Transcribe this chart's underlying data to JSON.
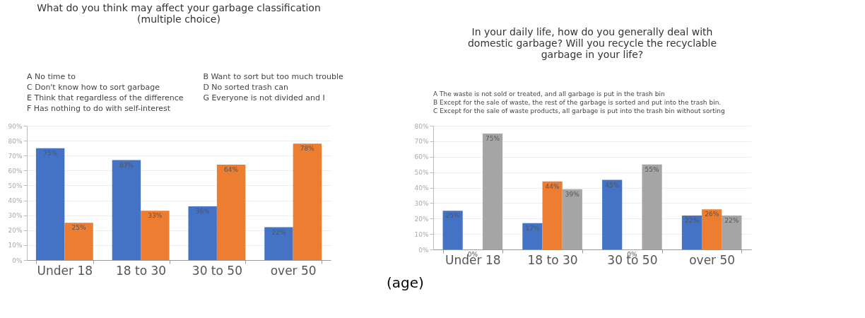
{
  "chart_data": [
    {
      "type": "bar",
      "title": [
        "What do you think may affect your garbage classification",
        "(multiple choice)"
      ],
      "annotations": [
        "A No time to",
        "B Want to sort but too much trouble",
        "C Don't know how to sort garbage",
        "D No sorted trash can",
        "E Think that regardless of the difference",
        "G Everyone is not divided and I",
        "F Has nothing to do with self-interest"
      ],
      "categories": [
        "Under 18",
        "18 to 30",
        "30 to 50",
        "over 50"
      ],
      "series": [
        {
          "color": "#4472c4",
          "values": [
            75,
            67,
            36,
            22
          ],
          "value_labels": [
            "75%",
            "67%",
            "36%",
            "22%"
          ]
        },
        {
          "color": "#ed7d31",
          "values": [
            25,
            33,
            64,
            78
          ],
          "value_labels": [
            "25%",
            "33%",
            "64%",
            "78%"
          ]
        }
      ],
      "ylim": [
        0,
        90
      ],
      "yticks": [
        {
          "value": 0,
          "label": "0%"
        },
        {
          "value": 10,
          "label": "10%"
        },
        {
          "value": 20,
          "label": "20%"
        },
        {
          "value": 30,
          "label": "30%"
        },
        {
          "value": 40,
          "label": "40%"
        },
        {
          "value": 50,
          "label": "50%"
        },
        {
          "value": 60,
          "label": "60%"
        },
        {
          "value": 70,
          "label": "70%"
        },
        {
          "value": 80,
          "label": "80%"
        },
        {
          "value": 90,
          "label": "90%"
        }
      ],
      "grid": "y",
      "legend": false
    },
    {
      "type": "bar",
      "title": [
        "In your daily life, how do you generally deal with",
        "domestic garbage? Will you recycle the recyclable",
        "garbage in your life?"
      ],
      "annotations": [
        "A The waste is not sold or treated, and all garbage is put in the trash bin",
        "B Except for the sale of waste, the rest of the garbage is sorted and put into the trash bin.",
        "C Except for the sale of waste products, all garbage is put into the trash bin without sorting"
      ],
      "xlabel": "(age)",
      "categories": [
        "Under 18",
        "18 to 30",
        "30 to 50",
        "over 50"
      ],
      "series": [
        {
          "color": "#4472c4",
          "values": [
            25,
            17,
            45,
            22
          ],
          "value_labels": [
            "25%",
            "17%",
            "45%",
            "22%"
          ]
        },
        {
          "color": "#ed7d31",
          "values": [
            0,
            44,
            0,
            26
          ],
          "value_labels": [
            "0%",
            "44%",
            "0%",
            "26%"
          ]
        },
        {
          "color": "#a5a5a5",
          "values": [
            75,
            39,
            55,
            22
          ],
          "value_labels": [
            "75%",
            "39%",
            "55%",
            "22%"
          ]
        }
      ],
      "ylim": [
        0,
        80
      ],
      "yticks": [
        {
          "value": 0,
          "label": "0%"
        },
        {
          "value": 10,
          "label": "10%"
        },
        {
          "value": 20,
          "label": "20%"
        },
        {
          "value": 30,
          "label": "30%"
        },
        {
          "value": 40,
          "label": "40%"
        },
        {
          "value": 50,
          "label": "50%"
        },
        {
          "value": 60,
          "label": "60%"
        },
        {
          "value": 70,
          "label": "70%"
        },
        {
          "value": 80,
          "label": "80%"
        }
      ],
      "grid": "y",
      "legend": false
    }
  ]
}
